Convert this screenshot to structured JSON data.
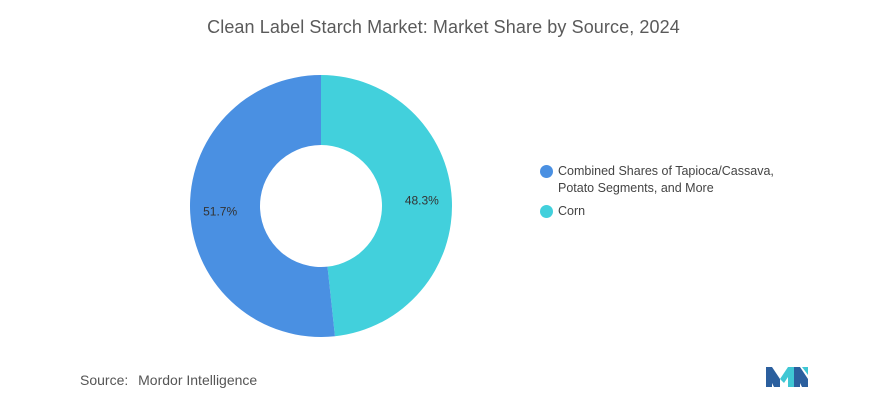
{
  "chart_data": {
    "type": "pie",
    "title": "Clean Label Starch Market: Market Share by Source, 2024",
    "donut": true,
    "slices": [
      {
        "name": "Combined Shares of Tapioca/Cassava, Potato Segments, and More",
        "legend_lines": [
          "Combined Shares of Tapioca/Cassava,",
          "Potato Segments, and More"
        ],
        "value": 51.7,
        "label": "51.7%",
        "color": "#4a90e2"
      },
      {
        "name": "Corn",
        "legend_lines": [
          "Corn"
        ],
        "value": 48.3,
        "label": "48.3%",
        "color": "#42d0dc"
      }
    ],
    "legend_position": "right"
  },
  "source": {
    "label": "Source:",
    "text": "Mordor Intelligence"
  },
  "logo": {
    "icon": "mordor-intelligence-logo-icon",
    "colors": [
      "#2b5f9e",
      "#3fc7d4"
    ]
  }
}
